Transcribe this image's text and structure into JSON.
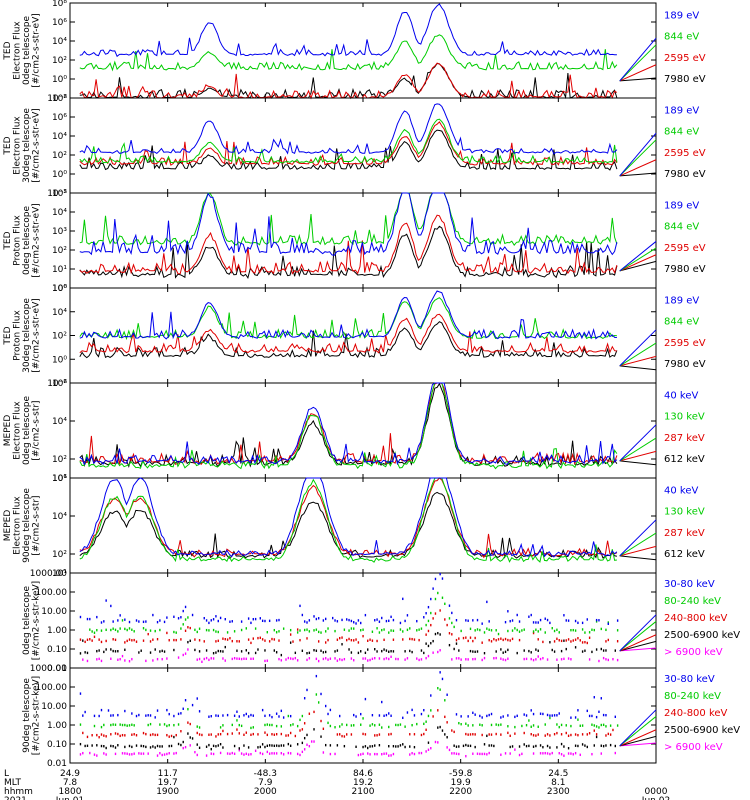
{
  "chart_data": [
    {
      "type": "line",
      "name": "ted-electron-0deg",
      "ylabel_lines": [
        "TED",
        "Electron Flux",
        "0deg telescope",
        "[#/cm2-s-str-eV]"
      ],
      "y_log": true,
      "ylim_exp": [
        -2,
        8
      ],
      "tick_labels": [
        "10⁸",
        "10⁶",
        "10⁴",
        "10²",
        "10⁰",
        "10⁻²"
      ],
      "tick_exps": [
        8,
        6,
        4,
        2,
        0,
        -2
      ],
      "series": [
        {
          "name": "7980 eV",
          "color": "#000000",
          "base": -2,
          "spread": 0.9,
          "events": [
            [
              5,
              1.0,
              0.1
            ],
            [
              12,
              2.0,
              0.12
            ],
            [
              13.2,
              3.6,
              0.15
            ]
          ],
          "post": 0.3
        },
        {
          "name": "2595 eV",
          "color": "#e00000",
          "base": -2,
          "spread": 0.8,
          "events": [
            [
              5,
              1.2,
              0.1
            ],
            [
              12,
              2.4,
              0.12
            ],
            [
              13.2,
              3.6,
              0.15
            ]
          ],
          "post": 0.5
        },
        {
          "name": "844 eV",
          "color": "#00cc00",
          "base": 1.0,
          "spread": 0.8,
          "events": [
            [
              5,
              1.8,
              0.12
            ],
            [
              12,
              3.0,
              0.12
            ],
            [
              13.2,
              3.6,
              0.15
            ]
          ],
          "post": 0.8
        },
        {
          "name": "189 eV",
          "color": "#0000ee",
          "base": 2.5,
          "spread": 0.6,
          "events": [
            [
              5,
              3.5,
              0.12
            ],
            [
              12,
              4.6,
              0.12
            ],
            [
              13.2,
              5.3,
              0.15
            ]
          ],
          "post": 0.9
        }
      ]
    },
    {
      "type": "line",
      "name": "ted-electron-30deg",
      "ylabel_lines": [
        "TED",
        "Electron Flux",
        "30deg telescope",
        "[#/cm2-s-str-eV]"
      ],
      "y_log": true,
      "ylim_exp": [
        -2,
        8
      ],
      "tick_labels": [
        "10⁸",
        "10⁶",
        "10⁴",
        "10²",
        "10⁰",
        "10⁻²"
      ],
      "tick_exps": [
        8,
        6,
        4,
        2,
        0,
        -2
      ],
      "series": [
        {
          "name": "7980 eV",
          "color": "#000000",
          "base": 0.5,
          "spread": 0.8,
          "events": [
            [
              5,
              1.5,
              0.1
            ],
            [
              12,
              2.8,
              0.12
            ],
            [
              13.2,
              4.2,
              0.15
            ]
          ],
          "post": 0.3
        },
        {
          "name": "2595 eV",
          "color": "#e00000",
          "base": 1.0,
          "spread": 0.8,
          "events": [
            [
              5,
              1.8,
              0.1
            ],
            [
              12,
              3.0,
              0.12
            ],
            [
              13.2,
              4.4,
              0.15
            ]
          ],
          "post": 0.5
        },
        {
          "name": "844 eV",
          "color": "#00cc00",
          "base": 1.2,
          "spread": 0.7,
          "events": [
            [
              5,
              2.1,
              0.12
            ],
            [
              12,
              3.4,
              0.12
            ],
            [
              13.2,
              4.5,
              0.15
            ]
          ],
          "post": 0.8
        },
        {
          "name": "189 eV",
          "color": "#0000ee",
          "base": 2.2,
          "spread": 0.5,
          "events": [
            [
              5,
              3.4,
              0.12
            ],
            [
              12,
              4.4,
              0.12
            ],
            [
              13.2,
              5.3,
              0.15
            ]
          ],
          "post": 0.9
        }
      ]
    },
    {
      "type": "line",
      "name": "ted-proton-0deg",
      "ylabel_lines": [
        "TED",
        "Proton Flux",
        "0deg telescope",
        "[#/cm2-s-str-eV]"
      ],
      "y_log": true,
      "ylim_exp": [
        0,
        5
      ],
      "tick_labels": [
        "10⁵",
        "10⁴",
        "10³",
        "10²",
        "10¹",
        "10⁰"
      ],
      "tick_exps": [
        5,
        4,
        3,
        2,
        1,
        0
      ],
      "series": [
        {
          "name": "7980 eV",
          "color": "#000000",
          "base": 0.6,
          "spread": 0.6,
          "events": [
            [
              5,
              1.6,
              0.12
            ],
            [
              12,
              2.2,
              0.12
            ],
            [
              13.2,
              2.6,
              0.15
            ]
          ],
          "post": 0.4
        },
        {
          "name": "2595 eV",
          "color": "#e00000",
          "base": 0.8,
          "spread": 0.6,
          "events": [
            [
              5,
              2.0,
              0.12
            ],
            [
              12,
              2.6,
              0.12
            ],
            [
              13.2,
              3.0,
              0.15
            ]
          ],
          "post": 0.5
        },
        {
          "name": "844 eV",
          "color": "#00cc00",
          "base": 2.3,
          "spread": 0.5,
          "events": [
            [
              5,
              2.7,
              0.12
            ],
            [
              12,
              3.0,
              0.12
            ],
            [
              13.2,
              3.3,
              0.15
            ]
          ],
          "post": 0.6
        },
        {
          "name": "189 eV",
          "color": "#0000ee",
          "base": 1.8,
          "spread": 0.7,
          "events": [
            [
              5,
              3.1,
              0.12
            ],
            [
              12,
              3.5,
              0.12
            ],
            [
              13.2,
              4.1,
              0.15
            ]
          ],
          "post": 0.7
        }
      ]
    },
    {
      "type": "line",
      "name": "ted-proton-30deg",
      "ylabel_lines": [
        "TED",
        "Proton Flux",
        "30deg telescope",
        "[#/cm2-s-str-eV]"
      ],
      "y_log": true,
      "ylim_exp": [
        -2,
        6
      ],
      "tick_labels": [
        "10⁶",
        "10⁴",
        "10²",
        "10⁰",
        "10⁻²"
      ],
      "tick_exps": [
        6,
        4,
        2,
        0,
        -2
      ],
      "series": [
        {
          "name": "7980 eV",
          "color": "#000000",
          "base": 0.2,
          "spread": 0.8,
          "events": [
            [
              5,
              1.6,
              0.12
            ],
            [
              12,
              2.4,
              0.12
            ],
            [
              13.2,
              2.9,
              0.15
            ]
          ],
          "post": 0.2
        },
        {
          "name": "2595 eV",
          "color": "#e00000",
          "base": 0.6,
          "spread": 0.8,
          "events": [
            [
              5,
              1.8,
              0.12
            ],
            [
              12,
              2.8,
              0.12
            ],
            [
              13.2,
              3.2,
              0.15
            ]
          ],
          "post": 0.4
        },
        {
          "name": "844 eV",
          "color": "#00cc00",
          "base": 1.8,
          "spread": 0.7,
          "events": [
            [
              5,
              2.6,
              0.12
            ],
            [
              12,
              3.1,
              0.12
            ],
            [
              13.2,
              3.4,
              0.15
            ]
          ],
          "post": 0.6
        },
        {
          "name": "189 eV",
          "color": "#0000ee",
          "base": 1.8,
          "spread": 0.7,
          "events": [
            [
              5,
              3.0,
              0.12
            ],
            [
              12,
              3.4,
              0.12
            ],
            [
              13.2,
              3.9,
              0.15
            ]
          ],
          "post": 0.8
        }
      ]
    },
    {
      "type": "line",
      "name": "meped-electron-0deg",
      "ylabel_lines": [
        "MEPED",
        "Electron Flux",
        "0deg telescope",
        "[#/cm2-s-str]"
      ],
      "y_log": true,
      "ylim_exp": [
        1,
        6
      ],
      "tick_labels": [
        "10⁶",
        "10⁴",
        "10²",
        "10¹"
      ],
      "tick_exps": [
        6,
        4,
        2,
        1
      ],
      "series": [
        {
          "name": "612 keV",
          "color": "#000000",
          "base": 1.7,
          "spread": 0.5,
          "events": [
            [
              8.7,
              2.2,
              0.15
            ],
            [
              13.2,
              4.2,
              0.15
            ]
          ],
          "post": 0.2
        },
        {
          "name": "287 keV",
          "color": "#e00000",
          "base": 1.8,
          "spread": 0.5,
          "events": [
            [
              8.7,
              2.6,
              0.15
            ],
            [
              13.2,
              4.5,
              0.15
            ]
          ],
          "post": 0.4
        },
        {
          "name": "130 keV",
          "color": "#00cc00",
          "base": 1.6,
          "spread": 0.3,
          "events": [
            [
              8.7,
              2.8,
              0.15
            ],
            [
              13.2,
              4.7,
              0.15
            ]
          ],
          "post": 0.6
        },
        {
          "name": "40 keV",
          "color": "#0000ee",
          "base": 1.8,
          "spread": 0.4,
          "events": [
            [
              8.7,
              3.0,
              0.15
            ],
            [
              13.2,
              4.9,
              0.15
            ]
          ],
          "post": 0.8
        }
      ]
    },
    {
      "type": "line",
      "name": "meped-electron-90deg",
      "ylabel_lines": [
        "MEPED",
        "Electron Flux",
        "90deg telescope",
        "[#/cm2-s-str]"
      ],
      "y_log": true,
      "ylim_exp": [
        1,
        6
      ],
      "tick_labels": [
        "10⁶",
        "10⁴",
        "10²",
        "10¹"
      ],
      "tick_exps": [
        6,
        4,
        2,
        1
      ],
      "series": [
        {
          "name": "612 keV",
          "color": "#000000",
          "base": 1.8,
          "spread": 0.4,
          "events": [
            [
              1.6,
              2.4,
              0.2
            ],
            [
              2.5,
              2.5,
              0.2
            ],
            [
              8.7,
              3.0,
              0.2
            ],
            [
              13.2,
              3.5,
              0.2
            ]
          ],
          "post": 0.2
        },
        {
          "name": "287 keV",
          "color": "#e00000",
          "base": 1.9,
          "spread": 0.4,
          "events": [
            [
              1.6,
              3.0,
              0.2
            ],
            [
              2.5,
              3.1,
              0.2
            ],
            [
              8.7,
              3.6,
              0.2
            ],
            [
              13.2,
              4.0,
              0.2
            ]
          ],
          "post": 0.4
        },
        {
          "name": "130 keV",
          "color": "#00cc00",
          "base": 1.6,
          "spread": 0.3,
          "events": [
            [
              1.6,
              3.4,
              0.2
            ],
            [
              2.5,
              3.5,
              0.2
            ],
            [
              8.7,
              4.2,
              0.2
            ],
            [
              13.2,
              4.5,
              0.2
            ]
          ],
          "post": 0.6
        },
        {
          "name": "40 keV",
          "color": "#0000ee",
          "base": 1.9,
          "spread": 0.3,
          "events": [
            [
              1.6,
              4.0,
              0.2
            ],
            [
              2.5,
              4.1,
              0.2
            ],
            [
              8.7,
              4.8,
              0.2
            ],
            [
              13.2,
              4.9,
              0.2
            ]
          ],
          "post": 0.8
        }
      ]
    },
    {
      "type": "scatter",
      "name": "meped-proton-0deg",
      "ylabel_lines": [
        "0deg telescope",
        "[#/cm2-s-str-keV]"
      ],
      "y_log": true,
      "ylim_exp": [
        -2,
        3
      ],
      "tick_labels": [
        "1000.00",
        "100.00",
        "10.00",
        "1.00",
        "0.10",
        "0.01"
      ],
      "tick_exps": [
        3,
        2,
        1,
        0,
        -1,
        -2
      ],
      "series": [
        {
          "name": "> 6900 keV",
          "color": "#ff00ff",
          "base": -1.6,
          "spread": 0.1,
          "events": [
            [
              4.2,
              0.5,
              0.06
            ],
            [
              13.2,
              0.5,
              0.1
            ]
          ],
          "post": 0.3
        },
        {
          "name": "2500-6900 keV",
          "color": "#000000",
          "base": -1.2,
          "spread": 0.2,
          "events": [
            [
              4.2,
              0.6,
              0.06
            ],
            [
              13.2,
              1.0,
              0.1
            ]
          ],
          "post": 0.4
        },
        {
          "name": "240-800 keV",
          "color": "#e00000",
          "base": -0.6,
          "spread": 0.2,
          "events": [
            [
              4.2,
              0.7,
              0.06
            ],
            [
              13.2,
              1.6,
              0.1
            ]
          ],
          "post": 0.5
        },
        {
          "name": "80-240 keV",
          "color": "#00cc00",
          "base": -0.1,
          "spread": 0.2,
          "events": [
            [
              4.2,
              0.8,
              0.06
            ],
            [
              13.2,
              2.1,
              0.1
            ]
          ],
          "post": 0.7
        },
        {
          "name": "30-80 keV",
          "color": "#0000ee",
          "base": 0.4,
          "spread": 0.4,
          "events": [
            [
              4.2,
              0.9,
              0.06
            ],
            [
              13.2,
              2.6,
              0.1
            ]
          ],
          "post": 0.8
        }
      ]
    },
    {
      "type": "scatter",
      "name": "meped-proton-90deg",
      "ylabel_lines": [
        "90deg telescope",
        "[#/cm2-s-str-keV]"
      ],
      "y_log": true,
      "ylim_exp": [
        -2,
        3
      ],
      "tick_labels": [
        "1000.00",
        "100.00",
        "10.00",
        "1.00",
        "0.10",
        "0.01"
      ],
      "tick_exps": [
        3,
        2,
        1,
        0,
        -1,
        -2
      ],
      "series": [
        {
          "name": "> 6900 keV",
          "color": "#ff00ff",
          "base": -1.6,
          "spread": 0.1,
          "events": [
            [
              4.2,
              0.5,
              0.06
            ],
            [
              8.7,
              0.7,
              0.1
            ],
            [
              13.2,
              0.8,
              0.1
            ]
          ],
          "post": 0.3
        },
        {
          "name": "2500-6900 keV",
          "color": "#000000",
          "base": -1.2,
          "spread": 0.2,
          "events": [
            [
              4.2,
              0.7,
              0.06
            ],
            [
              8.7,
              1.0,
              0.1
            ],
            [
              13.2,
              1.1,
              0.1
            ]
          ],
          "post": 0.4
        },
        {
          "name": "240-800 keV",
          "color": "#e00000",
          "base": -0.6,
          "spread": 0.2,
          "events": [
            [
              4.2,
              0.8,
              0.06
            ],
            [
              8.7,
              1.4,
              0.1
            ],
            [
              13.2,
              1.5,
              0.1
            ]
          ],
          "post": 0.5
        },
        {
          "name": "80-240 keV",
          "color": "#00cc00",
          "base": -0.1,
          "spread": 0.2,
          "events": [
            [
              4.2,
              0.9,
              0.06
            ],
            [
              8.7,
              1.8,
              0.1
            ],
            [
              13.2,
              2.0,
              0.1
            ]
          ],
          "post": 0.7
        },
        {
          "name": "30-80 keV",
          "color": "#0000ee",
          "base": 0.4,
          "spread": 0.4,
          "events": [
            [
              4.2,
              1.0,
              0.06
            ],
            [
              8.7,
              2.3,
              0.1
            ],
            [
              13.2,
              2.4,
              0.1
            ]
          ],
          "post": 0.8
        }
      ]
    }
  ],
  "xaxis": {
    "row_labels": [
      "L",
      "MLT",
      "hhmm",
      "2021"
    ],
    "columns": [
      {
        "t": 0.0,
        "L": "24.9",
        "MLT": "7.8",
        "hhmm": "1800",
        "date": "Jun 01"
      },
      {
        "t": 3.5,
        "L": "11.7",
        "MLT": "19.7",
        "hhmm": "1900",
        "date": ""
      },
      {
        "t": 7.0,
        "L": "-48.3",
        "MLT": "7.9",
        "hhmm": "2000",
        "date": ""
      },
      {
        "t": 10.5,
        "L": "84.6",
        "MLT": "19.2",
        "hhmm": "2100",
        "date": ""
      },
      {
        "t": 14.0,
        "L": "-59.8",
        "MLT": "19.9",
        "hhmm": "2200",
        "date": ""
      },
      {
        "t": 17.5,
        "L": "24.5",
        "MLT": "8.1",
        "hhmm": "2300",
        "date": ""
      },
      {
        "t": 21.0,
        "L": "",
        "MLT": "",
        "hhmm": "0000",
        "date": "Jun 02"
      }
    ],
    "range": [
      0,
      21
    ]
  }
}
